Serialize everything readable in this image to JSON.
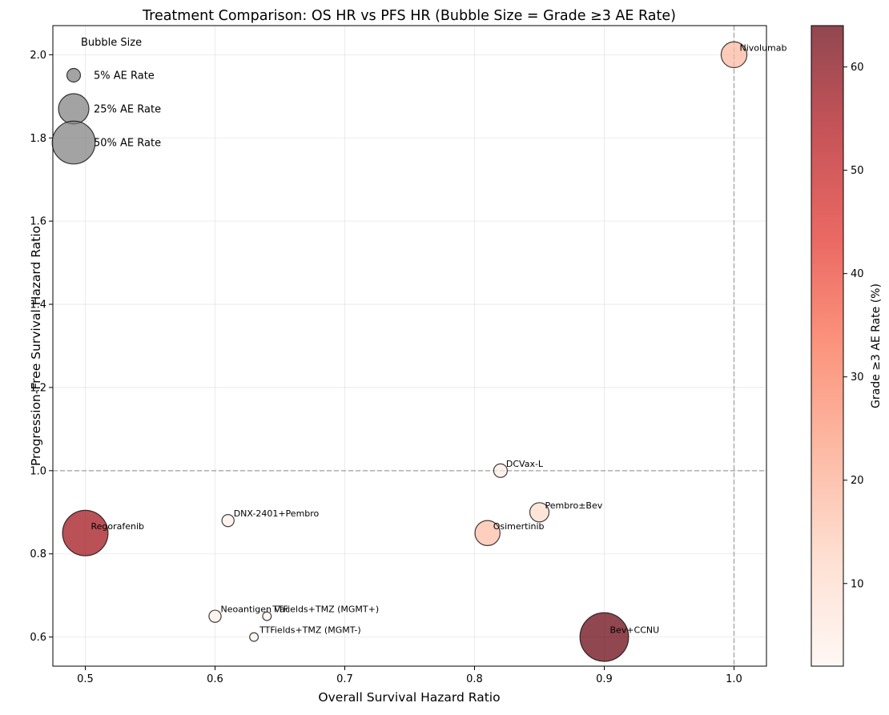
{
  "chart_data": {
    "type": "scatter",
    "title": "Treatment Comparison: OS HR vs PFS HR (Bubble Size = Grade ≥3 AE Rate)",
    "xlabel": "Overall Survival Hazard Ratio",
    "ylabel": "Progression-Free Survival Hazard Ratio",
    "xlim": [
      0.475,
      1.025
    ],
    "ylim": [
      0.53,
      2.07
    ],
    "xticks": [
      "0.5",
      "0.6",
      "0.7",
      "0.8",
      "0.9",
      "1.0"
    ],
    "yticks": [
      "0.6",
      "0.8",
      "1.0",
      "1.2",
      "1.4",
      "1.6",
      "1.8",
      "2.0"
    ],
    "grid": true,
    "reference_lines": {
      "x": 1.0,
      "y": 1.0,
      "style": "dashed"
    },
    "points": [
      {
        "label": "Nivolumab",
        "x": 1.0,
        "y": 2.0,
        "ae_rate": 18
      },
      {
        "label": "DCVax-L",
        "x": 0.82,
        "y": 1.0,
        "ae_rate": 5
      },
      {
        "label": "Pembro±Bev",
        "x": 0.85,
        "y": 0.9,
        "ae_rate": 10
      },
      {
        "label": "Osimertinib",
        "x": 0.81,
        "y": 0.85,
        "ae_rate": 17
      },
      {
        "label": "Regorafenib",
        "x": 0.5,
        "y": 0.85,
        "ae_rate": 56
      },
      {
        "label": "DNX-2401+Pembro",
        "x": 0.61,
        "y": 0.88,
        "ae_rate": 4
      },
      {
        "label": "Neoantigen Vac",
        "x": 0.6,
        "y": 0.65,
        "ae_rate": 4
      },
      {
        "label": "TTFields+TMZ (MGMT+)",
        "x": 0.64,
        "y": 0.65,
        "ae_rate": 2
      },
      {
        "label": "TTFields+TMZ (MGMT-)",
        "x": 0.63,
        "y": 0.6,
        "ae_rate": 2
      },
      {
        "label": "Bev+CCNU",
        "x": 0.9,
        "y": 0.6,
        "ae_rate": 64
      }
    ],
    "size_legend": {
      "title": "Bubble Size",
      "placement": "top-left",
      "entries": [
        {
          "label": "5% AE Rate",
          "ae_rate": 5
        },
        {
          "label": "25% AE Rate",
          "ae_rate": 25
        },
        {
          "label": "50% AE Rate",
          "ae_rate": 50
        }
      ]
    },
    "colorbar": {
      "label": "Grade ≥3 AE Rate (%)",
      "range": [
        2,
        64
      ],
      "ticks": [
        "10",
        "20",
        "30",
        "40",
        "50",
        "60"
      ],
      "colormap": "Reds",
      "colors": [
        "#fff5f0",
        "#fdd4c2",
        "#fca082",
        "#fb6b4b",
        "#e32f27",
        "#b11218",
        "#67000d"
      ]
    }
  }
}
